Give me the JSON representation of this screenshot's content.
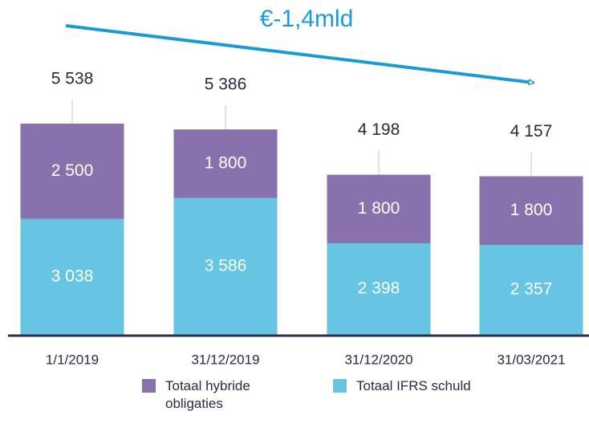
{
  "chart_data": {
    "type": "stacked_bar",
    "annotation": "€-1,4mld",
    "categories": [
      "1/1/2019",
      "31/12/2019",
      "31/12/2020",
      "31/03/2021"
    ],
    "series": [
      {
        "name": "Totaal IFRS schuld",
        "color": "#66c5e3",
        "values": [
          3038,
          3586,
          2398,
          2357
        ],
        "value_labels": [
          "3 038",
          "3 586",
          "2 398",
          "2 357"
        ]
      },
      {
        "name": "Totaal hybride obligaties",
        "color": "#8871ad",
        "values": [
          2500,
          1800,
          1800,
          1800
        ],
        "value_labels": [
          "2 500",
          "1 800",
          "1 800",
          "1 800"
        ]
      }
    ],
    "totals": [
      5538,
      5386,
      4198,
      4157
    ],
    "total_labels": [
      "5 538",
      "5 386",
      "4 198",
      "4 157"
    ]
  }
}
